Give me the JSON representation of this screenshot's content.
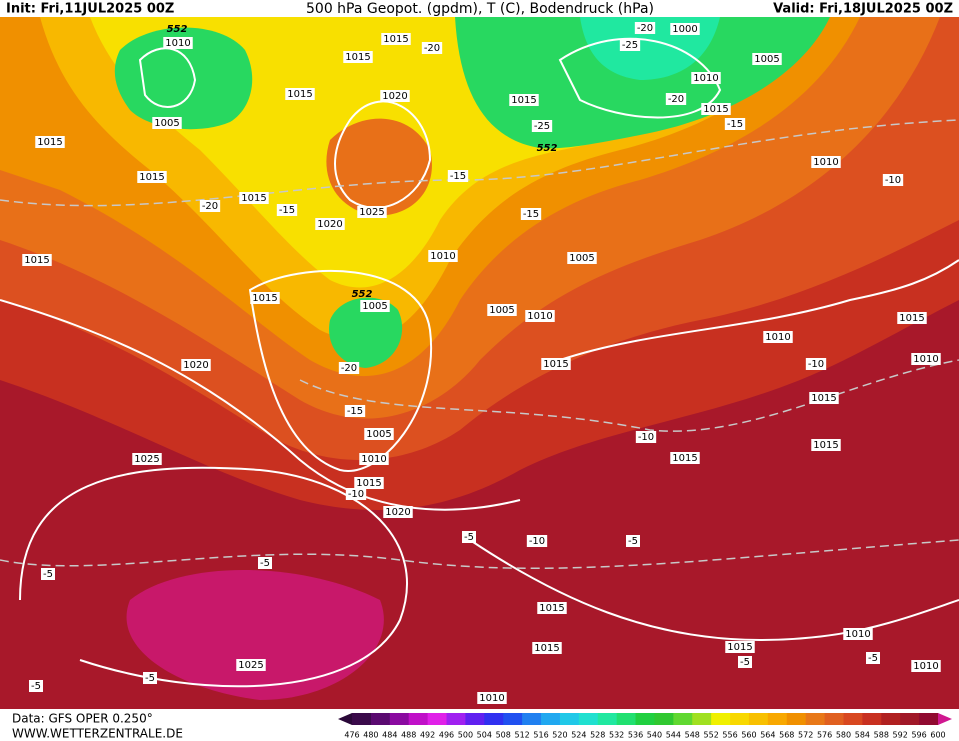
{
  "header": {
    "init": "Init: Fri,11JUL2025 00Z",
    "title": "500 hPa Geopot. (gpdm), T (C), Bodendruck (hPa)",
    "valid": "Valid: Fri,18JUL2025 00Z"
  },
  "footer": {
    "source": "Data: GFS OPER 0.250°",
    "website": "WWW.WETTERZENTRALE.DE"
  },
  "map": {
    "labels": [
      "1010",
      "1005",
      "1015",
      "1015",
      "1015",
      "1015",
      "1015",
      "-20",
      "1020",
      "-20",
      "1015",
      "-15",
      "1020",
      "1025",
      "-15",
      "1010",
      "1015",
      "1015",
      "1005",
      "1005",
      "1010",
      "-15",
      "1005",
      "1020",
      "-20",
      "-15",
      "1005",
      "1010",
      "1015",
      "-10",
      "1020",
      "1025",
      "1015",
      "1010",
      "-10",
      "1015",
      "1015",
      "-10",
      "1015",
      "1015",
      "1010",
      "-10",
      "1010",
      "1005",
      "1010",
      "1015",
      "-20",
      "-15",
      "1000",
      "-20",
      "-25",
      "1015",
      "-25",
      "-5",
      "-10",
      "-5",
      "-5",
      "-5",
      "1015",
      "1015",
      "1015",
      "-5",
      "1010",
      "-5",
      "1010",
      "1025",
      "-5",
      "-5",
      "1010"
    ],
    "contour_labels": [
      "552",
      "552",
      "552"
    ]
  },
  "colorbar": {
    "labels": [
      476,
      480,
      484,
      488,
      492,
      496,
      500,
      504,
      508,
      512,
      516,
      520,
      524,
      528,
      532,
      536,
      540,
      544,
      548,
      552,
      556,
      560,
      564,
      568,
      572,
      576,
      580,
      584,
      588,
      592,
      596,
      600
    ],
    "colors": [
      "#3a0a4a",
      "#5a0a70",
      "#8a0aa0",
      "#c010c8",
      "#e020e8",
      "#a020f0",
      "#6020f0",
      "#3030f0",
      "#2050f0",
      "#2080f0",
      "#20a8f0",
      "#20c8e8",
      "#20e0d0",
      "#20e8a0",
      "#20e070",
      "#20d040",
      "#30c830",
      "#60d830",
      "#a0e020",
      "#f0f000",
      "#f8d800",
      "#f8c000",
      "#f8a800",
      "#f09000",
      "#e87818",
      "#e06020",
      "#d84820",
      "#c83020",
      "#b02020",
      "#a01828",
      "#900a30"
    ],
    "low_color": "#2a0838",
    "high_color": "#d01890"
  }
}
